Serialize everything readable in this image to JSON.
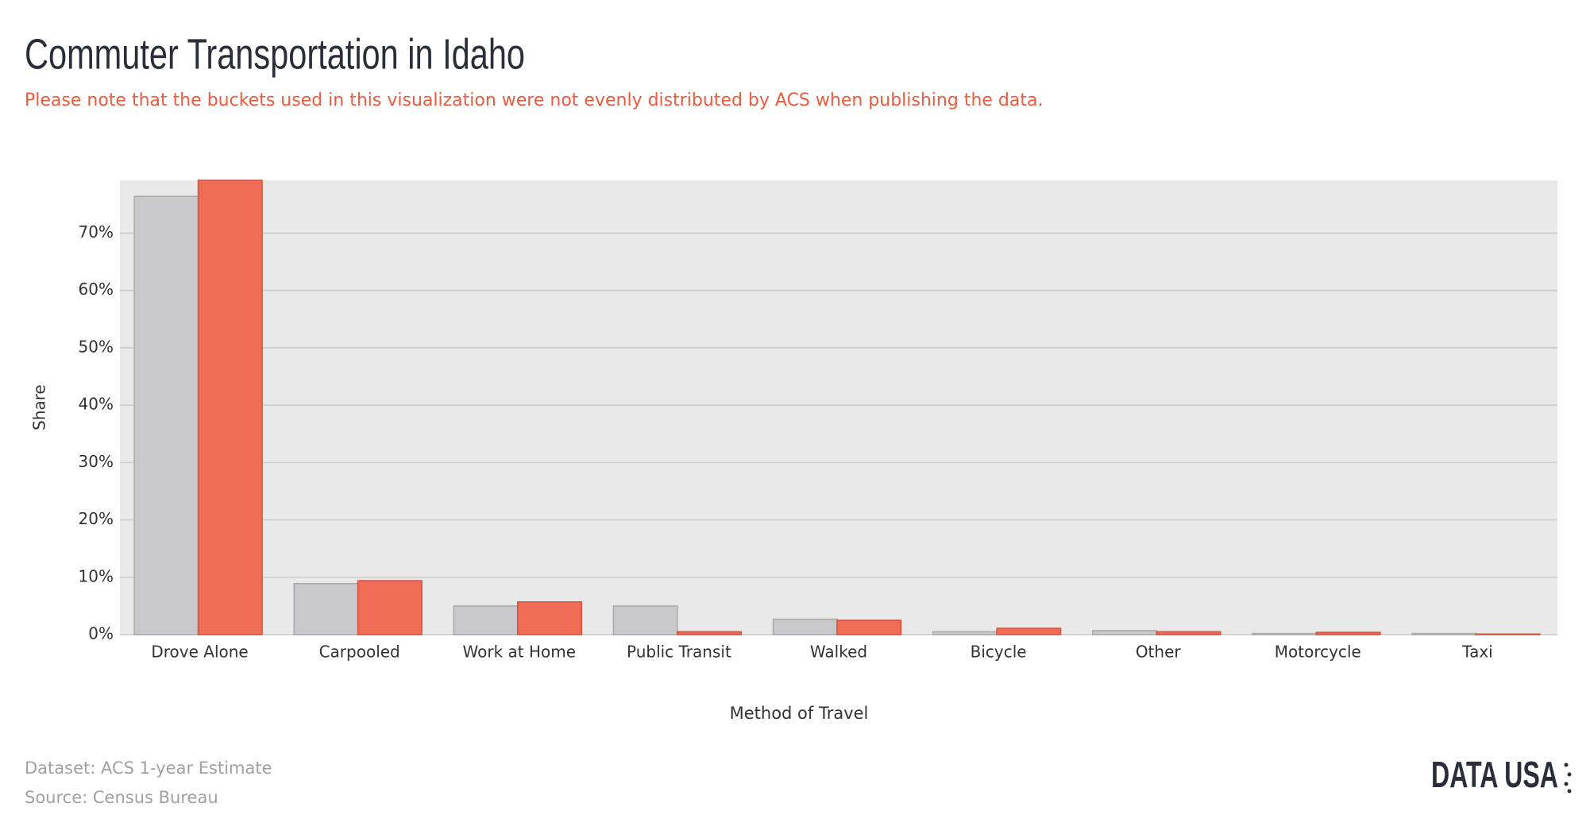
{
  "chart_data": {
    "type": "bar",
    "title": "Commuter Transportation in Idaho",
    "subtitle": "Please note that the buckets used in this visualization were not evenly distributed by ACS when publishing the data.",
    "x_label": "Method of Travel",
    "y_label": "Share",
    "categories": [
      "Drove Alone",
      "Carpooled",
      "Work at Home",
      "Public Transit",
      "Walked",
      "Bicycle",
      "Other",
      "Motorcycle",
      "Taxi"
    ],
    "series": [
      {
        "color": "#c8c8ca",
        "values": [
          76.4,
          8.9,
          5.0,
          5.0,
          2.7,
          0.5,
          0.7,
          0.2,
          0.2
        ]
      },
      {
        "color": "#ef6c56",
        "values": [
          79.2,
          9.4,
          5.7,
          0.5,
          2.5,
          1.1,
          0.5,
          0.4,
          0.1
        ]
      }
    ],
    "ylim": [
      0,
      79.2
    ],
    "yticks": [
      {
        "value": 0,
        "label": "0%"
      },
      {
        "value": 10,
        "label": "10%"
      },
      {
        "value": 20,
        "label": "20%"
      },
      {
        "value": 30,
        "label": "30%"
      },
      {
        "value": 40,
        "label": "40%"
      },
      {
        "value": 50,
        "label": "50%"
      },
      {
        "value": 60,
        "label": "60%"
      },
      {
        "value": 70,
        "label": "70%"
      }
    ],
    "grid": true,
    "footer": {
      "dataset": "Dataset: ACS 1-year Estimate",
      "source": "Source: Census Bureau",
      "logo": "DATA USA"
    }
  }
}
